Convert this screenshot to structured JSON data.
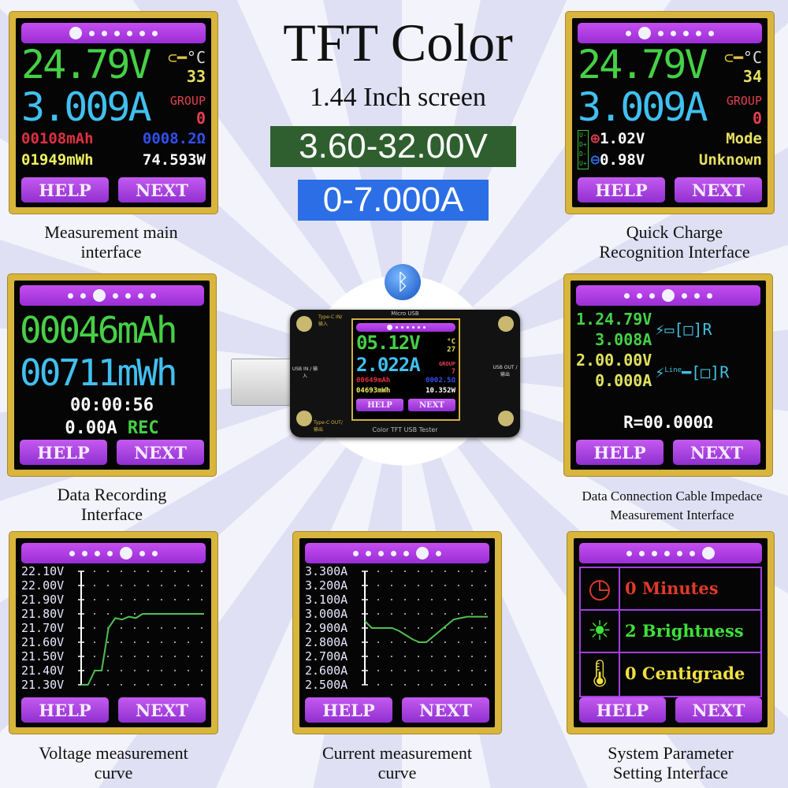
{
  "header": {
    "title": "TFT Color",
    "subtitle": "1.44  Inch screen",
    "voltage_range": "3.60-32.00V",
    "current_range": "0-7.000A",
    "colors": {
      "voltage_box": "#2f5f2f",
      "current_box": "#2b6ee6"
    }
  },
  "buttons": {
    "help": "HELP",
    "next": "NEXT"
  },
  "panels": {
    "main": {
      "caption1": "Measurement main",
      "caption2": "interface",
      "voltage": "24.79V",
      "temp_unit": "°C",
      "temp": "33",
      "group_label": "GROUP",
      "group": "0",
      "mah": "00108mAh",
      "ohm": "0008.2Ω",
      "mwh": "01949mWh",
      "watt": "74.593W",
      "active_page": 0
    },
    "quick_charge": {
      "caption1": "Quick Charge",
      "caption2": "Recognition Interface",
      "voltage": "24.79V",
      "temp_unit": "°C",
      "temp": "34",
      "group_label": "GROUP",
      "group": "0",
      "dplus": "1.02V",
      "dminus": "0.98V",
      "mode_label": "Mode",
      "mode": "Unknown",
      "pins": [
        "U-",
        "D+",
        "D-",
        "U+"
      ],
      "active_page": 1
    },
    "recording": {
      "caption1": "Data Recording",
      "caption2": "Interface",
      "mah": "00046mAh",
      "mwh": "00711mWh",
      "time": "00:00:56",
      "current": "0.00A",
      "status": "REC",
      "active_page": 2
    },
    "cable": {
      "caption1": "Data Connection Cable Impedace",
      "caption2": "Measurement Interface",
      "v1": "1.24.79V",
      "a1": "3.008A",
      "v2": "2.00.00V",
      "a2": "0.000A",
      "line_label": "Line",
      "r_label": "R",
      "resistance": "R=00.000Ω",
      "active_page": 3
    },
    "voltage_curve": {
      "caption1": "Voltage measurement",
      "caption2": "curve",
      "active_page": 4,
      "ticks": [
        "22.10V",
        "22.00V",
        "21.90V",
        "21.80V",
        "21.70V",
        "21.60V",
        "21.50V",
        "21.40V",
        "21.30V"
      ],
      "range": [
        21.3,
        22.1
      ],
      "values": [
        21.3,
        21.3,
        21.4,
        21.4,
        21.7,
        21.77,
        21.76,
        21.78,
        21.77,
        21.8,
        21.8,
        21.8,
        21.8,
        21.8,
        21.8,
        21.8,
        21.8,
        21.8,
        21.8
      ],
      "line_color": "#4fc04f"
    },
    "current_curve": {
      "caption1": "Current measurement",
      "caption2": "curve",
      "active_page": 5,
      "ticks": [
        "3.300A",
        "3.200A",
        "3.100A",
        "3.000A",
        "2.900A",
        "2.800A",
        "2.700A",
        "2.600A",
        "2.500A"
      ],
      "range": [
        2.5,
        3.3
      ],
      "values": [
        2.95,
        2.9,
        2.9,
        2.9,
        2.9,
        2.88,
        2.85,
        2.82,
        2.8,
        2.8,
        2.84,
        2.88,
        2.92,
        2.96,
        2.97,
        2.98,
        2.98,
        2.98,
        2.98
      ],
      "line_color": "#4fc04f"
    },
    "system": {
      "caption1": "System Parameter",
      "caption2": "Setting Interface",
      "active_page": 6,
      "items": [
        {
          "icon": "clock-icon",
          "text": "0 Minutes",
          "color": "#e03a2a"
        },
        {
          "icon": "sun-icon",
          "text": "2 Brightness",
          "color": "#3fe03a"
        },
        {
          "icon": "thermometer-icon",
          "text": "0 Centigrade",
          "color": "#f0e040"
        }
      ]
    }
  },
  "device": {
    "label": "Color TFT USB Tester",
    "micro_usb": "Micro USB",
    "typec_in": "Type-C IN/输入",
    "typec_out": "Type-C OUT/输出",
    "usb_in": "USB IN / 输入",
    "usb_out": "USB OUT / 输出",
    "voltage": "05.12V",
    "temp_unit": "°C",
    "temp": "27",
    "current": "2.022A",
    "group_label": "GROUP",
    "group": "7",
    "mah": "00649mAh",
    "ohm": "0002.5Ω",
    "mwh": "04693mWh",
    "watt": "10.352W",
    "active_page": 0
  }
}
